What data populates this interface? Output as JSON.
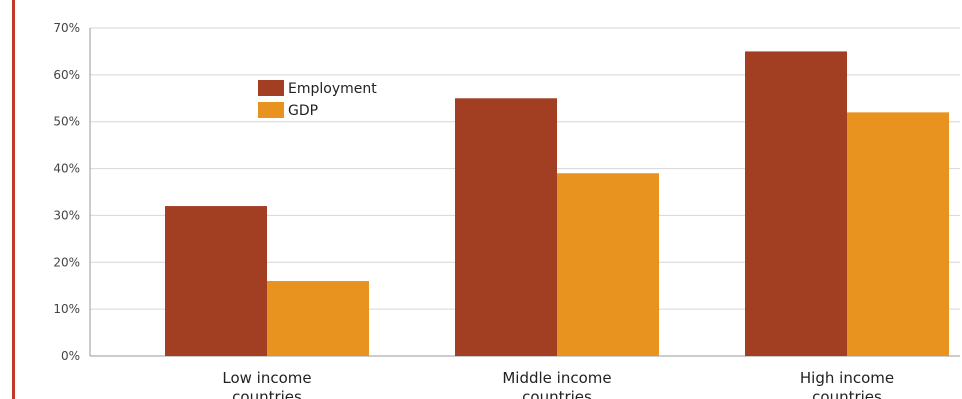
{
  "chart_data": {
    "type": "bar",
    "categories": [
      [
        "Low income",
        "countries"
      ],
      [
        "Middle income",
        "countries"
      ],
      [
        "High income",
        "countries"
      ]
    ],
    "series": [
      {
        "name": "Employment",
        "values": [
          32,
          55,
          65
        ],
        "color": "#a23e22"
      },
      {
        "name": "GDP",
        "values": [
          16,
          39,
          52
        ],
        "color": "#e8921f"
      }
    ],
    "y_ticks": [
      "0%",
      "10%",
      "20%",
      "30%",
      "40%",
      "50%",
      "60%",
      "70%"
    ],
    "ylim": [
      0,
      70
    ],
    "grid": true,
    "legend_position": "top-left"
  }
}
